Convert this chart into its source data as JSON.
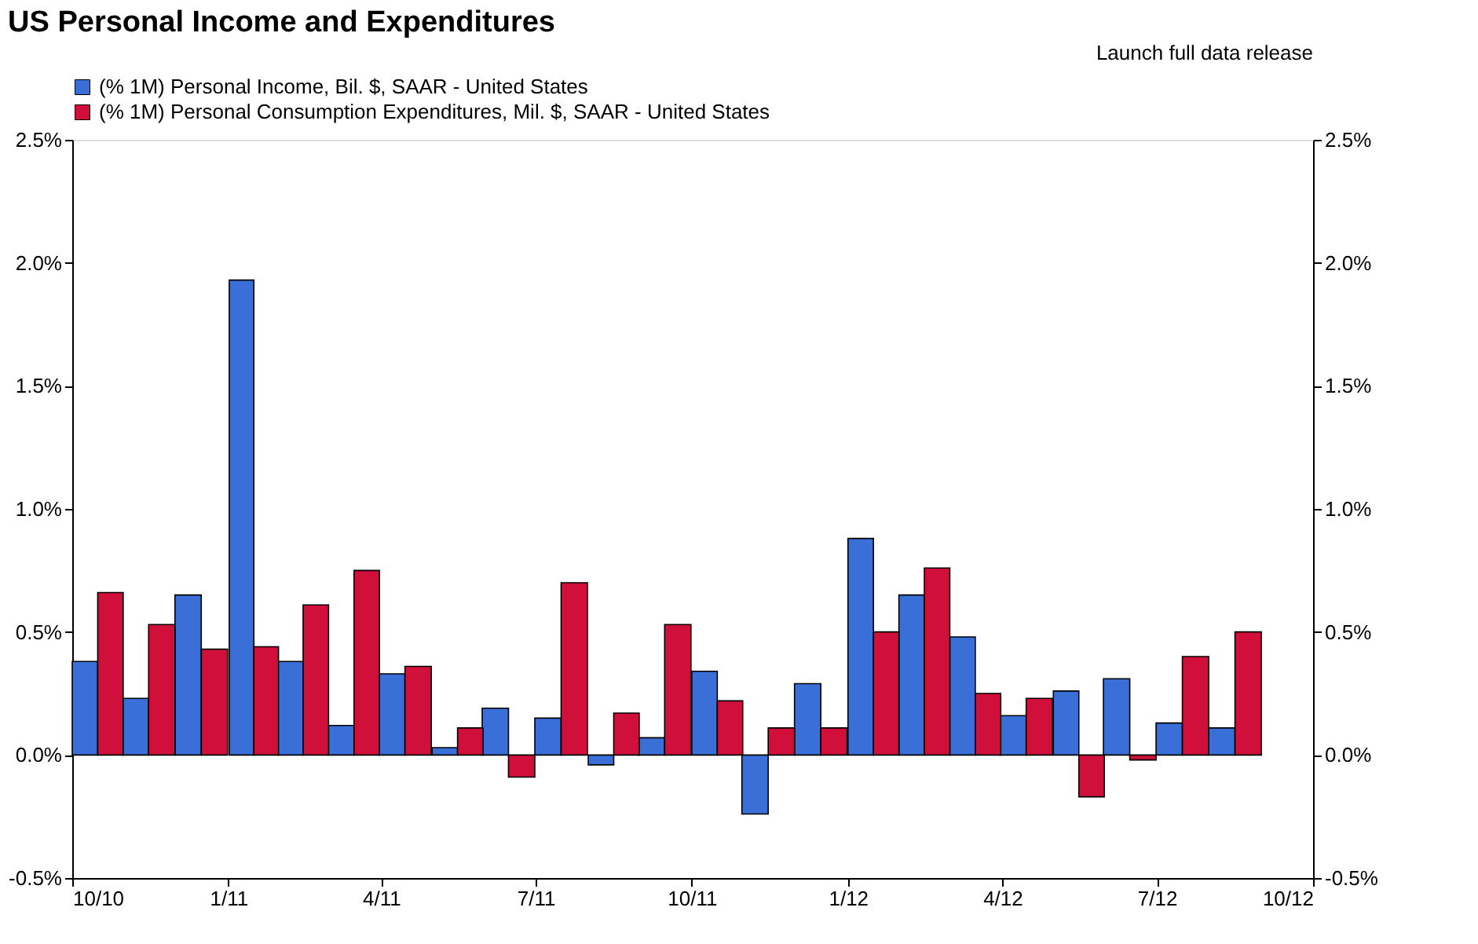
{
  "chart_data": {
    "type": "bar",
    "title": "US Personal Income and Expenditures",
    "annotations": [
      "Launch full data release"
    ],
    "x": [
      "2010-10-16",
      "2010-11-15",
      "2010-12-16",
      "2011-01-16",
      "2011-02-14",
      "2011-03-16",
      "2011-04-15",
      "2011-05-16",
      "2011-06-15",
      "2011-07-16",
      "2011-08-16",
      "2011-09-15",
      "2011-10-16",
      "2011-11-15",
      "2011-12-16",
      "2012-01-16",
      "2012-02-15",
      "2012-03-16",
      "2012-04-15",
      "2012-05-16",
      "2012-06-15",
      "2012-07-16",
      "2012-08-16"
    ],
    "series": [
      {
        "name": "(% 1M) Personal Income, Bil. $, SAAR - United States",
        "color": "#3a6fd8",
        "values": [
          0.38,
          0.23,
          0.65,
          1.93,
          0.38,
          0.12,
          0.33,
          0.03,
          0.19,
          0.15,
          -0.04,
          0.07,
          0.34,
          -0.24,
          0.29,
          0.88,
          0.65,
          0.48,
          0.16,
          0.26,
          0.31,
          0.13,
          0.11
        ]
      },
      {
        "name": "(% 1M) Personal Consumption Expenditures, Mil. $, SAAR - United States",
        "color": "#d0103a",
        "values": [
          0.66,
          0.53,
          0.43,
          0.44,
          0.61,
          0.75,
          0.36,
          0.11,
          -0.09,
          0.7,
          0.17,
          0.53,
          0.22,
          0.11,
          0.11,
          0.5,
          0.76,
          0.25,
          0.23,
          -0.17,
          -0.02,
          0.4,
          0.5
        ]
      }
    ],
    "xlim": [
      "2010-10",
      "2012-10"
    ],
    "xticks": [
      {
        "value": "2010-10",
        "label": "10/10"
      },
      {
        "value": "2011-01",
        "label": "1/11"
      },
      {
        "value": "2011-04",
        "label": "4/11"
      },
      {
        "value": "2011-07",
        "label": "7/11"
      },
      {
        "value": "2011-10",
        "label": "10/11"
      },
      {
        "value": "2012-01",
        "label": "1/12"
      },
      {
        "value": "2012-04",
        "label": "4/12"
      },
      {
        "value": "2012-07",
        "label": "7/12"
      },
      {
        "value": "2012-10",
        "label": "10/12"
      }
    ],
    "ylim": [
      -0.5,
      2.5
    ],
    "yticks": [
      {
        "value": -0.5,
        "label": "-0.5%"
      },
      {
        "value": 0,
        "label": "0.0%"
      },
      {
        "value": 0.5,
        "label": "0.5%"
      },
      {
        "value": 1,
        "label": "1.0%"
      },
      {
        "value": 1.5,
        "label": "1.5%"
      },
      {
        "value": 2,
        "label": "2.0%"
      },
      {
        "value": 2.5,
        "label": "2.5%"
      }
    ],
    "y2lim": [
      -0.5,
      2.5
    ],
    "y2ticks": [
      {
        "value": -0.5,
        "label": "-0.5%"
      },
      {
        "value": 0,
        "label": "0.0%"
      },
      {
        "value": 0.5,
        "label": "0.5%"
      },
      {
        "value": 1,
        "label": "1.0%"
      },
      {
        "value": 1.5,
        "label": "1.5%"
      },
      {
        "value": 2,
        "label": "2.0%"
      },
      {
        "value": 2.5,
        "label": "2.5%"
      }
    ],
    "legend": "top left",
    "grid": false
  }
}
